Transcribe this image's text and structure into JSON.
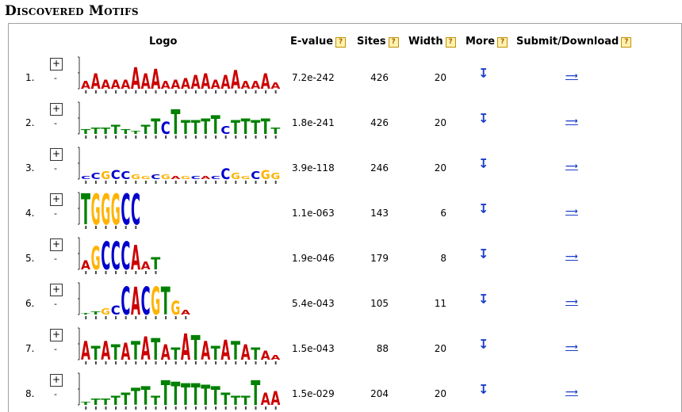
{
  "section_title": "Discovered Motifs",
  "headers": {
    "logo": "Logo",
    "evalue": "E-value",
    "sites": "Sites",
    "width": "Width",
    "more": "More",
    "submit": "Submit/Download"
  },
  "help_label": "?",
  "expand_label": "+",
  "collapse_label": "-",
  "more_glyph": "↧",
  "submit_glyph": "⟶",
  "colors": {
    "A": "#cc0000",
    "C": "#0000cc",
    "G": "#ffb300",
    "T": "#008000",
    "link": "#1a3cc8"
  },
  "motifs": [
    {
      "num": "1.",
      "evalue": "7.2e-242",
      "sites": "426",
      "width": "20",
      "logo": [
        [
          "A",
          0.5
        ],
        [
          "A",
          1
        ],
        [
          "A",
          0.6
        ],
        [
          "A",
          0.6
        ],
        [
          "A",
          0.6
        ],
        [
          "A",
          1.4
        ],
        [
          "A",
          1
        ],
        [
          "A",
          1.3
        ],
        [
          "A",
          0.5
        ],
        [
          "A",
          0.6
        ],
        [
          "A",
          0.7
        ],
        [
          "A",
          0.9
        ],
        [
          "A",
          1
        ],
        [
          "A",
          0.6
        ],
        [
          "A",
          0.9
        ],
        [
          "A",
          1.2
        ],
        [
          "A",
          0.5
        ],
        [
          "A",
          0.5
        ],
        [
          "A",
          1
        ],
        [
          "A",
          0.4
        ]
      ]
    },
    {
      "num": "2.",
      "evalue": "1.8e-241",
      "sites": "426",
      "width": "20",
      "logo": [
        [
          "T",
          0.3
        ],
        [
          "T",
          0.4
        ],
        [
          "T",
          0.4
        ],
        [
          "T",
          0.6
        ],
        [
          "T",
          0.3
        ],
        [
          "T",
          0.2
        ],
        [
          "T",
          0.6
        ],
        [
          "T",
          1
        ],
        [
          "C",
          0.8
        ],
        [
          "T",
          1.6
        ],
        [
          "T",
          0.9
        ],
        [
          "T",
          0.9
        ],
        [
          "T",
          1
        ],
        [
          "T",
          1.2
        ],
        [
          "C",
          0.5
        ],
        [
          "T",
          0.9
        ],
        [
          "T",
          1
        ],
        [
          "T",
          0.9
        ],
        [
          "T",
          1
        ],
        [
          "T",
          0.4
        ]
      ]
    },
    {
      "num": "3.",
      "evalue": "3.9e-118",
      "sites": "246",
      "width": "20",
      "logo": [
        [
          "C",
          0.2
        ],
        [
          "C",
          0.4
        ],
        [
          "G",
          0.5
        ],
        [
          "C",
          0.6
        ],
        [
          "C",
          0.5
        ],
        [
          "G",
          0.3
        ],
        [
          "G",
          0.2
        ],
        [
          "C",
          0.3
        ],
        [
          "G",
          0.3
        ],
        [
          "A",
          0.2
        ],
        [
          "G",
          0.2
        ],
        [
          "C",
          0.2
        ],
        [
          "A",
          0.2
        ],
        [
          "C",
          0.2
        ],
        [
          "C",
          0.7
        ],
        [
          "G",
          0.4
        ],
        [
          "G",
          0.2
        ],
        [
          "C",
          0.5
        ],
        [
          "G",
          0.6
        ],
        [
          "G",
          0.4
        ]
      ]
    },
    {
      "num": "4.",
      "evalue": "1.1e-063",
      "sites": "143",
      "width": "6",
      "logo": [
        [
          "T",
          2
        ],
        [
          "G",
          2
        ],
        [
          "G",
          2
        ],
        [
          "G",
          2
        ],
        [
          "C",
          2
        ],
        [
          "C",
          2
        ]
      ]
    },
    {
      "num": "5.",
      "evalue": "1.9e-046",
      "sites": "179",
      "width": "8",
      "logo": [
        [
          "A",
          0.6
        ],
        [
          "G",
          1.5
        ],
        [
          "C",
          1.8
        ],
        [
          "C",
          1.8
        ],
        [
          "C",
          1.8
        ],
        [
          "A",
          1.6
        ],
        [
          "A",
          0.5
        ],
        [
          "T",
          0.8
        ]
      ]
    },
    {
      "num": "6.",
      "evalue": "5.4e-043",
      "sites": "105",
      "width": "11",
      "logo": [
        [
          "T",
          0.1
        ],
        [
          "T",
          0.2
        ],
        [
          "G",
          0.4
        ],
        [
          "C",
          0.6
        ],
        [
          "C",
          1.8
        ],
        [
          "A",
          1.8
        ],
        [
          "C",
          1.8
        ],
        [
          "G",
          1.8
        ],
        [
          "T",
          1.8
        ],
        [
          "G",
          0.9
        ],
        [
          "A",
          0.3
        ]
      ]
    },
    {
      "num": "7.",
      "evalue": "1.5e-043",
      "sites": "88",
      "width": "20",
      "logo": [
        [
          "A",
          1.2
        ],
        [
          "T",
          0.9
        ],
        [
          "A",
          1.2
        ],
        [
          "T",
          1
        ],
        [
          "A",
          1.1
        ],
        [
          "T",
          1.2
        ],
        [
          "A",
          1.5
        ],
        [
          "T",
          1.4
        ],
        [
          "A",
          1
        ],
        [
          "T",
          0.8
        ],
        [
          "A",
          1.7
        ],
        [
          "T",
          1.6
        ],
        [
          "A",
          1.2
        ],
        [
          "T",
          0.9
        ],
        [
          "A",
          1.3
        ],
        [
          "T",
          1.2
        ],
        [
          "A",
          1
        ],
        [
          "T",
          0.8
        ],
        [
          "A",
          0.6
        ],
        [
          "A",
          0.3
        ]
      ]
    },
    {
      "num": "8.",
      "evalue": "1.5e-029",
      "sites": "204",
      "width": "20",
      "logo": [
        [
          "T",
          0.2
        ],
        [
          "T",
          0.4
        ],
        [
          "T",
          0.4
        ],
        [
          "T",
          0.6
        ],
        [
          "T",
          0.8
        ],
        [
          "T",
          1.1
        ],
        [
          "T",
          1.2
        ],
        [
          "T",
          0.6
        ],
        [
          "T",
          1.6
        ],
        [
          "T",
          1.5
        ],
        [
          "T",
          1.4
        ],
        [
          "T",
          1.4
        ],
        [
          "T",
          1.3
        ],
        [
          "T",
          1.2
        ],
        [
          "T",
          0.8
        ],
        [
          "T",
          0.6
        ],
        [
          "T",
          0.6
        ],
        [
          "T",
          1.6
        ],
        [
          "A",
          0.8
        ],
        [
          "A",
          0.9
        ]
      ]
    }
  ]
}
